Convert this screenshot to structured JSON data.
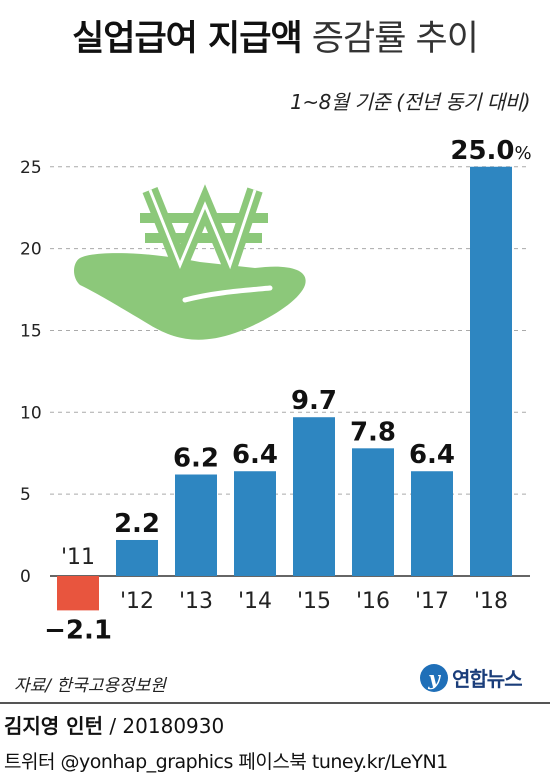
{
  "header": {
    "title_bold": "실업급여 지급액",
    "title_light": "증감률 추이",
    "subtitle": "1~8월 기준 (전년 동기 대비)"
  },
  "chart_data": {
    "type": "bar",
    "categories": [
      "'11",
      "'12",
      "'13",
      "'14",
      "'15",
      "'16",
      "'17",
      "'18"
    ],
    "values": [
      -2.1,
      2.2,
      6.2,
      6.4,
      9.7,
      7.8,
      6.4,
      25.0
    ],
    "value_labels": [
      "−2.1",
      "2.2",
      "6.2",
      "6.4",
      "9.7",
      "7.8",
      "6.4",
      "25.0"
    ],
    "percent_suffix": "%",
    "yticks": [
      "0",
      "5",
      "10",
      "15",
      "20",
      "25"
    ],
    "ylim": [
      -2.1,
      25
    ],
    "grid": true,
    "colors": {
      "bar": "#2e86c1",
      "negative_bar": "#e8553e",
      "grid": "#aaaaaa",
      "illustration": "#8cc87a"
    },
    "illustration_icon": "hand-holding-won-icon"
  },
  "footer": {
    "source": "자료/ 한국고용정보원",
    "logo_text": "연합뉴스",
    "author": "김지영 인턴",
    "date": " / 20180930",
    "sns": "트위터 @yonhap_graphics  페이스북 tuney.kr/LeYN1"
  }
}
